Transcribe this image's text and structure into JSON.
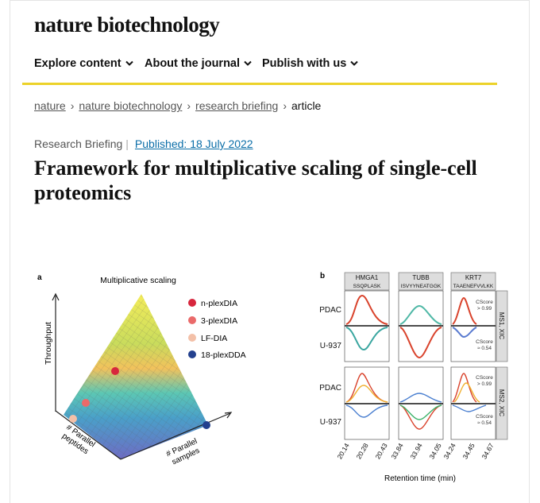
{
  "header": {
    "logo": "nature biotechnology",
    "nav": [
      "Explore content",
      "About the journal",
      "Publish with us"
    ]
  },
  "breadcrumb": [
    "nature",
    "nature biotechnology",
    "research briefing",
    "article"
  ],
  "article": {
    "type": "Research Briefing",
    "published": "Published: 18 July 2022",
    "title": "Framework for multiplicative scaling of single-cell proteomics"
  },
  "figure": {
    "panel_a": {
      "label": "a",
      "title": "Multiplicative scaling",
      "y_axis": "Throughput",
      "legend": [
        "n-plexDIA",
        "3-plexDIA",
        "LF-DIA",
        "18-plexDDA"
      ],
      "axis_peptides": [
        "# Parallel",
        "peptides"
      ],
      "axis_samples": [
        "# Parallel",
        "samples"
      ]
    },
    "panel_b": {
      "label": "b",
      "columns": [
        {
          "gene": "HMGA1",
          "peptide": "SSQPLASK"
        },
        {
          "gene": "TUBB",
          "peptide": "ISVYYNEATGGK"
        },
        {
          "gene": "KRT7",
          "peptide": "TAAENEFVVLKK"
        }
      ],
      "rows": [
        "PDAC",
        "U-937",
        "PDAC",
        "U-937"
      ],
      "side_labels": [
        "MS1, XIC",
        "MS2, XIC"
      ],
      "cscore_high": [
        "CScore",
        "> 0.99"
      ],
      "cscore_low": [
        "CScore",
        "≈ 0.54"
      ],
      "x_ticks": [
        "20.14",
        "20.28",
        "20.43",
        "33.84",
        "33.94",
        "34.05",
        "34.24",
        "34.45",
        "34.67"
      ],
      "x_label": "Retention time (min)"
    }
  }
}
